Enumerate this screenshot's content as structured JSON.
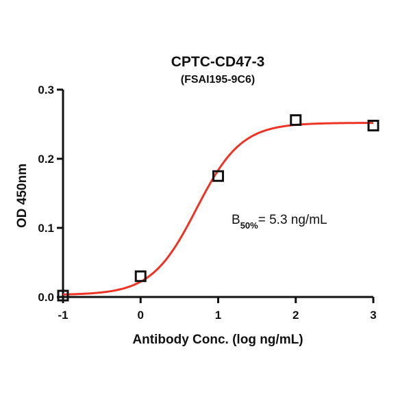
{
  "chart_data": {
    "type": "scatter",
    "title": "CPTC-CD47-3",
    "subtitle": "(FSAI195-9C6)",
    "xlabel": "Antibody Conc. (log ng/mL)",
    "ylabel": "OD 450nm",
    "xlim": [
      -1,
      3
    ],
    "ylim": [
      0,
      0.3
    ],
    "xticks": [
      "-1",
      "0",
      "1",
      "2",
      "3"
    ],
    "yticks": [
      "0.0",
      "0.1",
      "0.2",
      "0.3"
    ],
    "grid": false,
    "points": [
      {
        "x": -1,
        "y": 0.002
      },
      {
        "x": 0,
        "y": 0.03
      },
      {
        "x": 1,
        "y": 0.175
      },
      {
        "x": 2,
        "y": 0.256
      },
      {
        "x": 3,
        "y": 0.248
      }
    ],
    "fit": {
      "bottom": 0.003,
      "top": 0.252,
      "log_ec50": 0.72,
      "hill": 1.5
    },
    "colors": {
      "fit_line": "#ee3324",
      "markers": "#111111",
      "axes": "#111111"
    },
    "annotation": {
      "prefix": "B",
      "subscript": "50%",
      "text": "= 5.3 ng/mL"
    }
  }
}
